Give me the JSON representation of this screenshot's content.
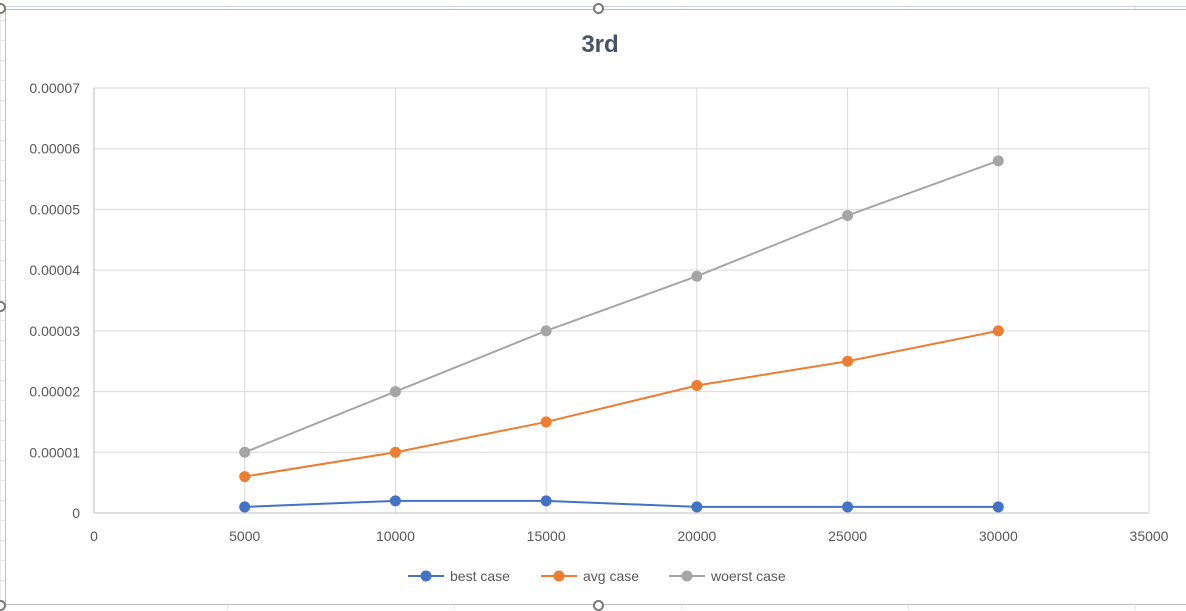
{
  "chart_data": {
    "type": "scatter",
    "title": "3rd",
    "xlabel": "",
    "ylabel": "",
    "xlim": [
      0,
      35000
    ],
    "ylim": [
      0,
      7e-05
    ],
    "x_ticks": [
      "0",
      "5000",
      "10000",
      "15000",
      "20000",
      "25000",
      "30000",
      "35000"
    ],
    "y_ticks": [
      "0",
      "0.00001",
      "0.00002",
      "0.00003",
      "0.00004",
      "0.00005",
      "0.00006",
      "0.00007"
    ],
    "x": [
      5000,
      10000,
      15000,
      20000,
      25000,
      30000
    ],
    "grid": true,
    "legend_position": "bottom",
    "series": [
      {
        "name": "best case",
        "color": "#4472c4",
        "values": [
          1e-06,
          2e-06,
          2e-06,
          1e-06,
          1e-06,
          1e-06
        ]
      },
      {
        "name": "avg case",
        "color": "#ed7d31",
        "values": [
          6e-06,
          1e-05,
          1.5e-05,
          2.1e-05,
          2.5e-05,
          3e-05
        ]
      },
      {
        "name": "woerst case",
        "color": "#a5a5a5",
        "values": [
          1e-05,
          2e-05,
          3e-05,
          3.9e-05,
          4.9e-05,
          5.8e-05
        ]
      }
    ]
  }
}
